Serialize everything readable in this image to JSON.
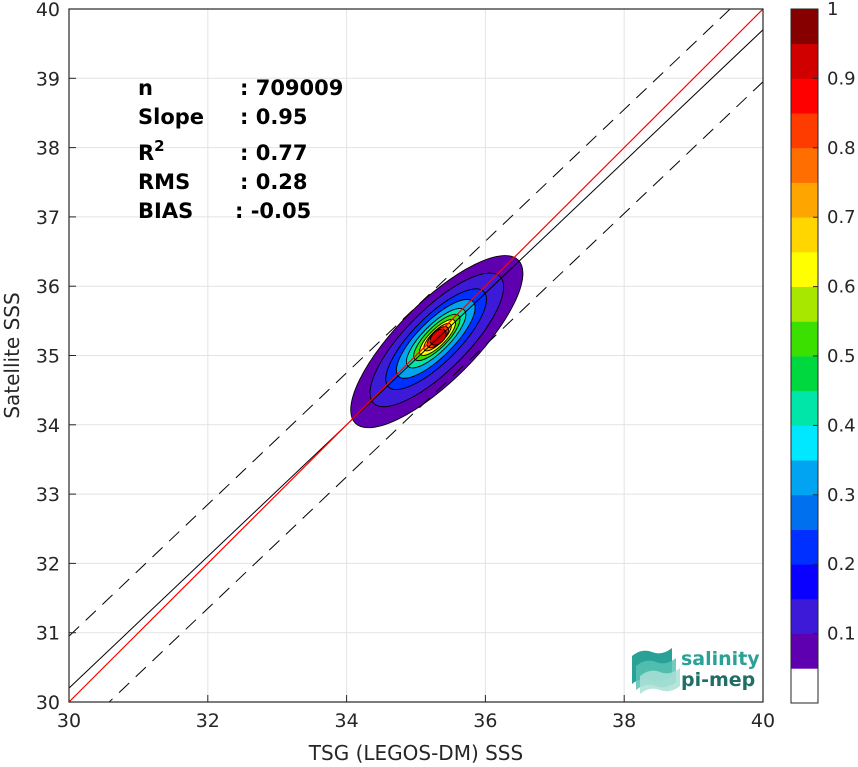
{
  "chart_data": {
    "type": "heatmap",
    "subtype": "normalized density contour scatter",
    "xlabel": "TSG (LEGOS-DM) SSS",
    "ylabel": "Satellite SSS",
    "xlim": [
      30,
      40
    ],
    "ylim": [
      30,
      40
    ],
    "xticks": [
      30,
      32,
      34,
      36,
      38,
      40
    ],
    "yticks": [
      30,
      31,
      32,
      33,
      34,
      35,
      36,
      37,
      38,
      39,
      40
    ],
    "grid": true,
    "stats": [
      {
        "label": "n",
        "value": ": 709009"
      },
      {
        "label": "Slope",
        "value": ": 0.95"
      },
      {
        "label": "R",
        "sup": "2",
        "value": ": 0.77"
      },
      {
        "label": "RMS",
        "value": ": 0.28"
      },
      {
        "label": "BIAS",
        "value": ": -0.05"
      }
    ],
    "lines": {
      "one_to_one": {
        "color": "#ff0000",
        "x": [
          30,
          40
        ],
        "y": [
          30,
          40
        ]
      },
      "regression": {
        "color": "#000000",
        "slope": 0.95,
        "x": [
          30,
          40
        ],
        "y": [
          30.2,
          39.7
        ]
      },
      "bounds": {
        "color": "#000000",
        "style": "dashed",
        "offset": 0.75
      }
    },
    "density": {
      "center": [
        35.35,
        35.27
      ],
      "contours": [
        {
          "level": 0.05,
          "x_range": [
            34.15,
            36.45
          ],
          "y_range": [
            34.0,
            36.4
          ]
        },
        {
          "level": 0.1,
          "x_range": [
            34.4,
            36.2
          ],
          "y_range": [
            34.3,
            36.15
          ]
        },
        {
          "level": 0.2,
          "x_range": [
            34.6,
            35.98
          ],
          "y_range": [
            34.55,
            35.92
          ]
        },
        {
          "level": 0.3,
          "x_range": [
            34.75,
            35.82
          ],
          "y_range": [
            34.7,
            35.78
          ]
        },
        {
          "level": 0.4,
          "x_range": [
            34.88,
            35.7
          ],
          "y_range": [
            34.85,
            35.65
          ]
        },
        {
          "level": 0.5,
          "x_range": [
            34.98,
            35.62
          ],
          "y_range": [
            34.95,
            35.57
          ]
        },
        {
          "level": 0.6,
          "x_range": [
            35.06,
            35.56
          ],
          "y_range": [
            35.02,
            35.5
          ]
        },
        {
          "level": 0.7,
          "x_range": [
            35.12,
            35.5
          ],
          "y_range": [
            35.08,
            35.45
          ]
        },
        {
          "level": 0.8,
          "x_range": [
            35.17,
            35.46
          ],
          "y_range": [
            35.13,
            35.4
          ]
        },
        {
          "level": 0.9,
          "x_range": [
            35.22,
            35.42
          ],
          "y_range": [
            35.17,
            35.36
          ]
        }
      ]
    },
    "colorbar": {
      "range": [
        0,
        1
      ],
      "ticks": [
        "0.1",
        "0.2",
        "0.3",
        "0.4",
        "0.5",
        "0.6",
        "0.7",
        "0.8",
        "0.9",
        "1"
      ],
      "colors": [
        "#ffffff",
        "#5f00b0",
        "#3c1ad8",
        "#0a00ff",
        "#0030ff",
        "#0070ee",
        "#00a4f0",
        "#00e8ff",
        "#00e5a8",
        "#00d840",
        "#3ce000",
        "#a8e800",
        "#ffff00",
        "#ffd600",
        "#ffa500",
        "#ff6e00",
        "#ff3c00",
        "#ff0000",
        "#d00000",
        "#870000"
      ]
    }
  },
  "logo": {
    "line1": "salinity",
    "line2": "pi-mep"
  }
}
